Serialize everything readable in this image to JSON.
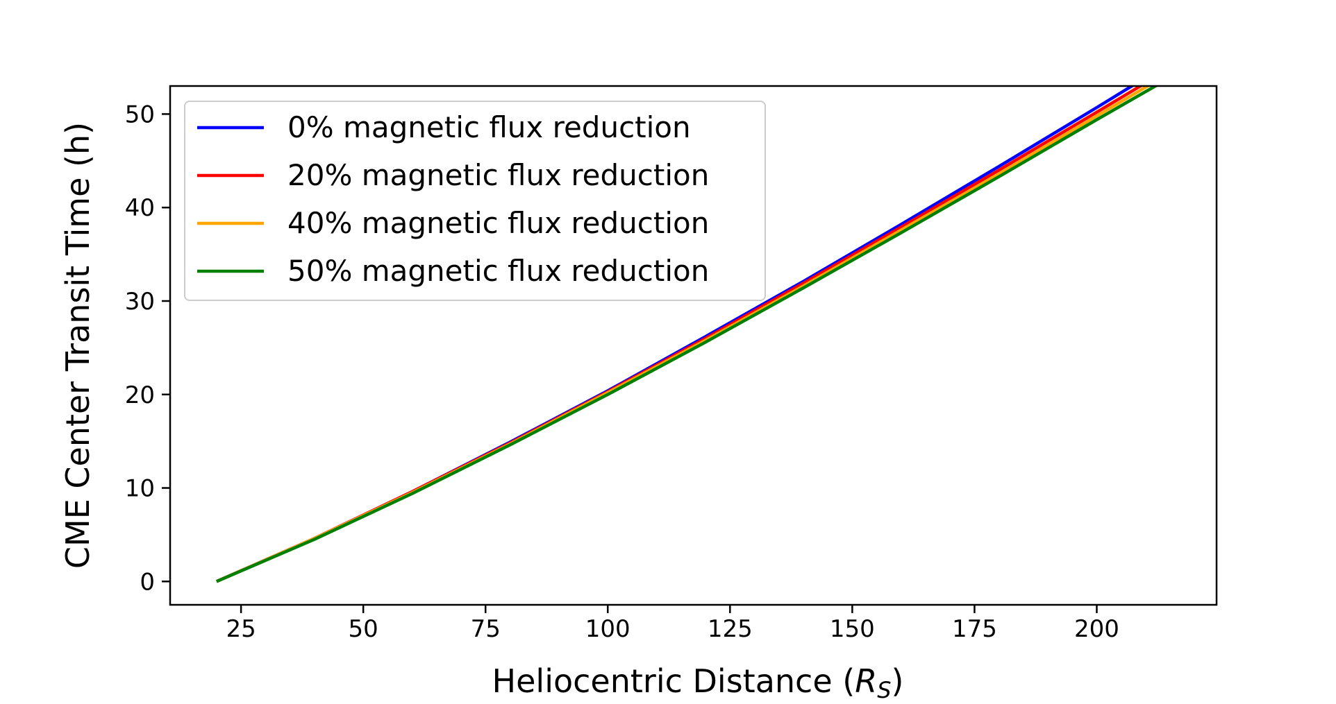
{
  "chart_data": {
    "type": "line",
    "xlabel_main": "Heliocentric Distance  (",
    "xlabel_sym": "R",
    "xlabel_sub": "S",
    "xlabel_close": ")",
    "ylabel": "CME Center Transit Time  (h)",
    "xlim": [
      10.5,
      224.5
    ],
    "ylim": [
      -2.5,
      53
    ],
    "xticks": [
      25,
      50,
      75,
      100,
      125,
      150,
      175,
      200
    ],
    "yticks": [
      0,
      10,
      20,
      30,
      40,
      50
    ],
    "grid": false,
    "legend_position": "top-left",
    "series": [
      {
        "name": "0% magnetic flux reduction",
        "color": "#0000ff",
        "x": [
          20,
          40,
          60,
          80,
          100,
          120,
          140,
          160,
          180,
          200,
          215
        ],
        "y": [
          0,
          4.6,
          9.6,
          14.9,
          20.4,
          26.2,
          32.1,
          38.2,
          44.4,
          50.7,
          55.5
        ]
      },
      {
        "name": "20% magnetic flux reduction",
        "color": "#ff0000",
        "x": [
          20,
          40,
          60,
          80,
          100,
          120,
          140,
          160,
          180,
          200,
          215
        ],
        "y": [
          0,
          4.6,
          9.6,
          14.8,
          20.3,
          26.0,
          31.9,
          37.9,
          44.0,
          50.2,
          54.9
        ]
      },
      {
        "name": "40% magnetic flux reduction",
        "color": "#ffa500",
        "x": [
          20,
          40,
          60,
          80,
          100,
          120,
          140,
          160,
          180,
          200,
          215
        ],
        "y": [
          0,
          4.6,
          9.5,
          14.7,
          20.2,
          25.8,
          31.6,
          37.6,
          43.6,
          49.8,
          54.4
        ]
      },
      {
        "name": "50% magnetic flux reduction",
        "color": "#008000",
        "x": [
          20,
          40,
          60,
          80,
          100,
          120,
          140,
          160,
          180,
          200,
          215
        ],
        "y": [
          0,
          4.5,
          9.4,
          14.6,
          20.0,
          25.6,
          31.4,
          37.3,
          43.3,
          49.4,
          53.9
        ]
      }
    ]
  }
}
